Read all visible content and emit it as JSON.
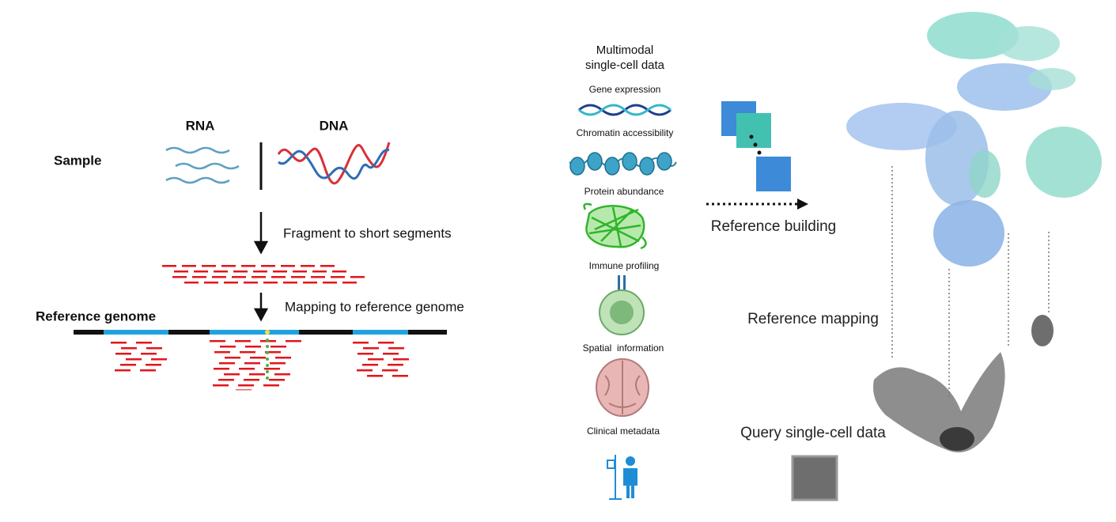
{
  "left": {
    "columns": [
      "RNA",
      "DNA"
    ],
    "sample_label": "Sample",
    "steps": [
      "Fragment to short segments",
      "Mapping to reference genome"
    ],
    "reference_label": "Reference genome"
  },
  "right": {
    "title": [
      "Multimodal",
      "single-cell data"
    ],
    "modalities": [
      "Gene expression",
      "Chromatin accessibility",
      "Protein abundance",
      "Immune profiling",
      "Spatial  information",
      "Clinical metadata"
    ],
    "steps": [
      "Reference building",
      "Reference mapping",
      "Query single-cell data"
    ]
  }
}
